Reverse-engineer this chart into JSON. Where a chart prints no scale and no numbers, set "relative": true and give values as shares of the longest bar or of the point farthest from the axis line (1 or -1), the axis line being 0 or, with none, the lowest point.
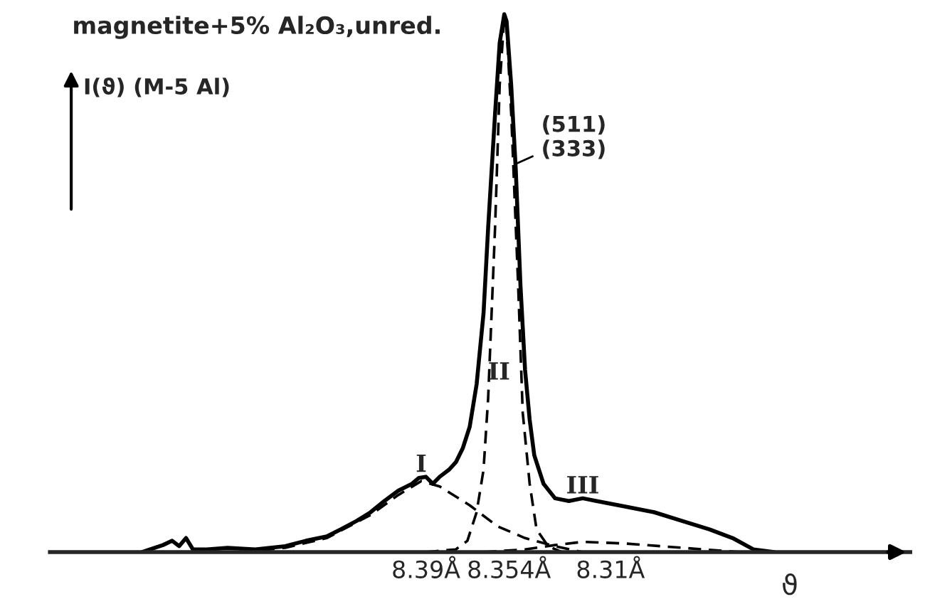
{
  "chart_data": {
    "type": "line",
    "relative": true,
    "title": "magnetite+5% Al₂O₃,unred.",
    "ylabel": "I(ϑ) (M-5 Al)",
    "xlabel": "ϑ",
    "xlim": [
      8.553,
      8.18
    ],
    "xticks": [
      {
        "value": 8.39,
        "label": "8.39Å"
      },
      {
        "value": 8.354,
        "label": "8.354Å"
      },
      {
        "value": 8.31,
        "label": "8.31Å"
      }
    ],
    "tick_labels": "x",
    "grid": false,
    "marker": "none",
    "series": [
      {
        "color": "#000000",
        "line_style": "solid",
        "x": [
          8.513,
          8.504,
          8.5,
          8.497,
          8.494,
          8.491,
          8.485,
          8.476,
          8.464,
          8.451,
          8.442,
          8.433,
          8.427,
          8.42,
          8.414,
          8.408,
          8.402,
          8.396,
          8.393,
          8.39,
          8.387,
          8.384,
          8.38,
          8.377,
          8.374,
          8.371,
          8.368,
          8.365,
          8.363,
          8.36,
          8.358,
          8.356,
          8.355,
          8.353,
          8.351,
          8.349,
          8.347,
          8.345,
          8.343,
          8.339,
          8.334,
          8.328,
          8.322,
          8.316,
          8.304,
          8.291,
          8.279,
          8.267,
          8.257,
          8.248,
          8.239
        ],
        "values": [
          0,
          0.013,
          0.021,
          0.011,
          0.026,
          0.005,
          0.005,
          0.008,
          0.005,
          0.011,
          0.021,
          0.029,
          0.042,
          0.058,
          0.074,
          0.095,
          0.114,
          0.127,
          0.138,
          0.14,
          0.127,
          0.14,
          0.153,
          0.167,
          0.193,
          0.233,
          0.312,
          0.444,
          0.603,
          0.815,
          0.947,
          1,
          0.987,
          0.868,
          0.709,
          0.497,
          0.339,
          0.246,
          0.18,
          0.127,
          0.1,
          0.095,
          0.1,
          0.095,
          0.085,
          0.074,
          0.058,
          0.042,
          0.026,
          0.005,
          0
        ]
      },
      {
        "color": "#000000",
        "line_style": "dashed",
        "x": [
          8.47,
          8.451,
          8.433,
          8.414,
          8.402,
          8.392,
          8.384,
          8.371,
          8.359,
          8.347,
          8.334,
          8.322
        ],
        "values": [
          0,
          0.008,
          0.026,
          0.069,
          0.106,
          0.132,
          0.122,
          0.087,
          0.048,
          0.026,
          0.011,
          0
        ]
      },
      {
        "color": "#000000",
        "line_style": "dashed",
        "x": [
          8.39,
          8.377,
          8.372,
          8.368,
          8.365,
          8.363,
          8.36,
          8.358,
          8.356,
          8.355,
          8.353,
          8.35,
          8.348,
          8.345,
          8.342,
          8.337,
          8.331
        ],
        "values": [
          0,
          0.005,
          0.021,
          0.074,
          0.153,
          0.286,
          0.603,
          0.868,
          0.995,
          0.974,
          0.815,
          0.497,
          0.259,
          0.127,
          0.042,
          0.011,
          0
        ]
      },
      {
        "color": "#000000",
        "line_style": "dashed",
        "x": [
          8.365,
          8.347,
          8.334,
          8.322,
          8.304,
          8.279,
          8.254
        ],
        "values": [
          0,
          0.005,
          0.013,
          0.019,
          0.016,
          0.008,
          0
        ]
      }
    ],
    "annotations": [
      {
        "text": "I",
        "x": 8.392,
        "y": 0.14
      },
      "II",
      {
        "text": "III",
        "x": 8.322,
        "y": 0.1
      },
      {
        "text": "(511)\n(333)",
        "x": 8.352,
        "y": 0.72
      }
    ]
  }
}
